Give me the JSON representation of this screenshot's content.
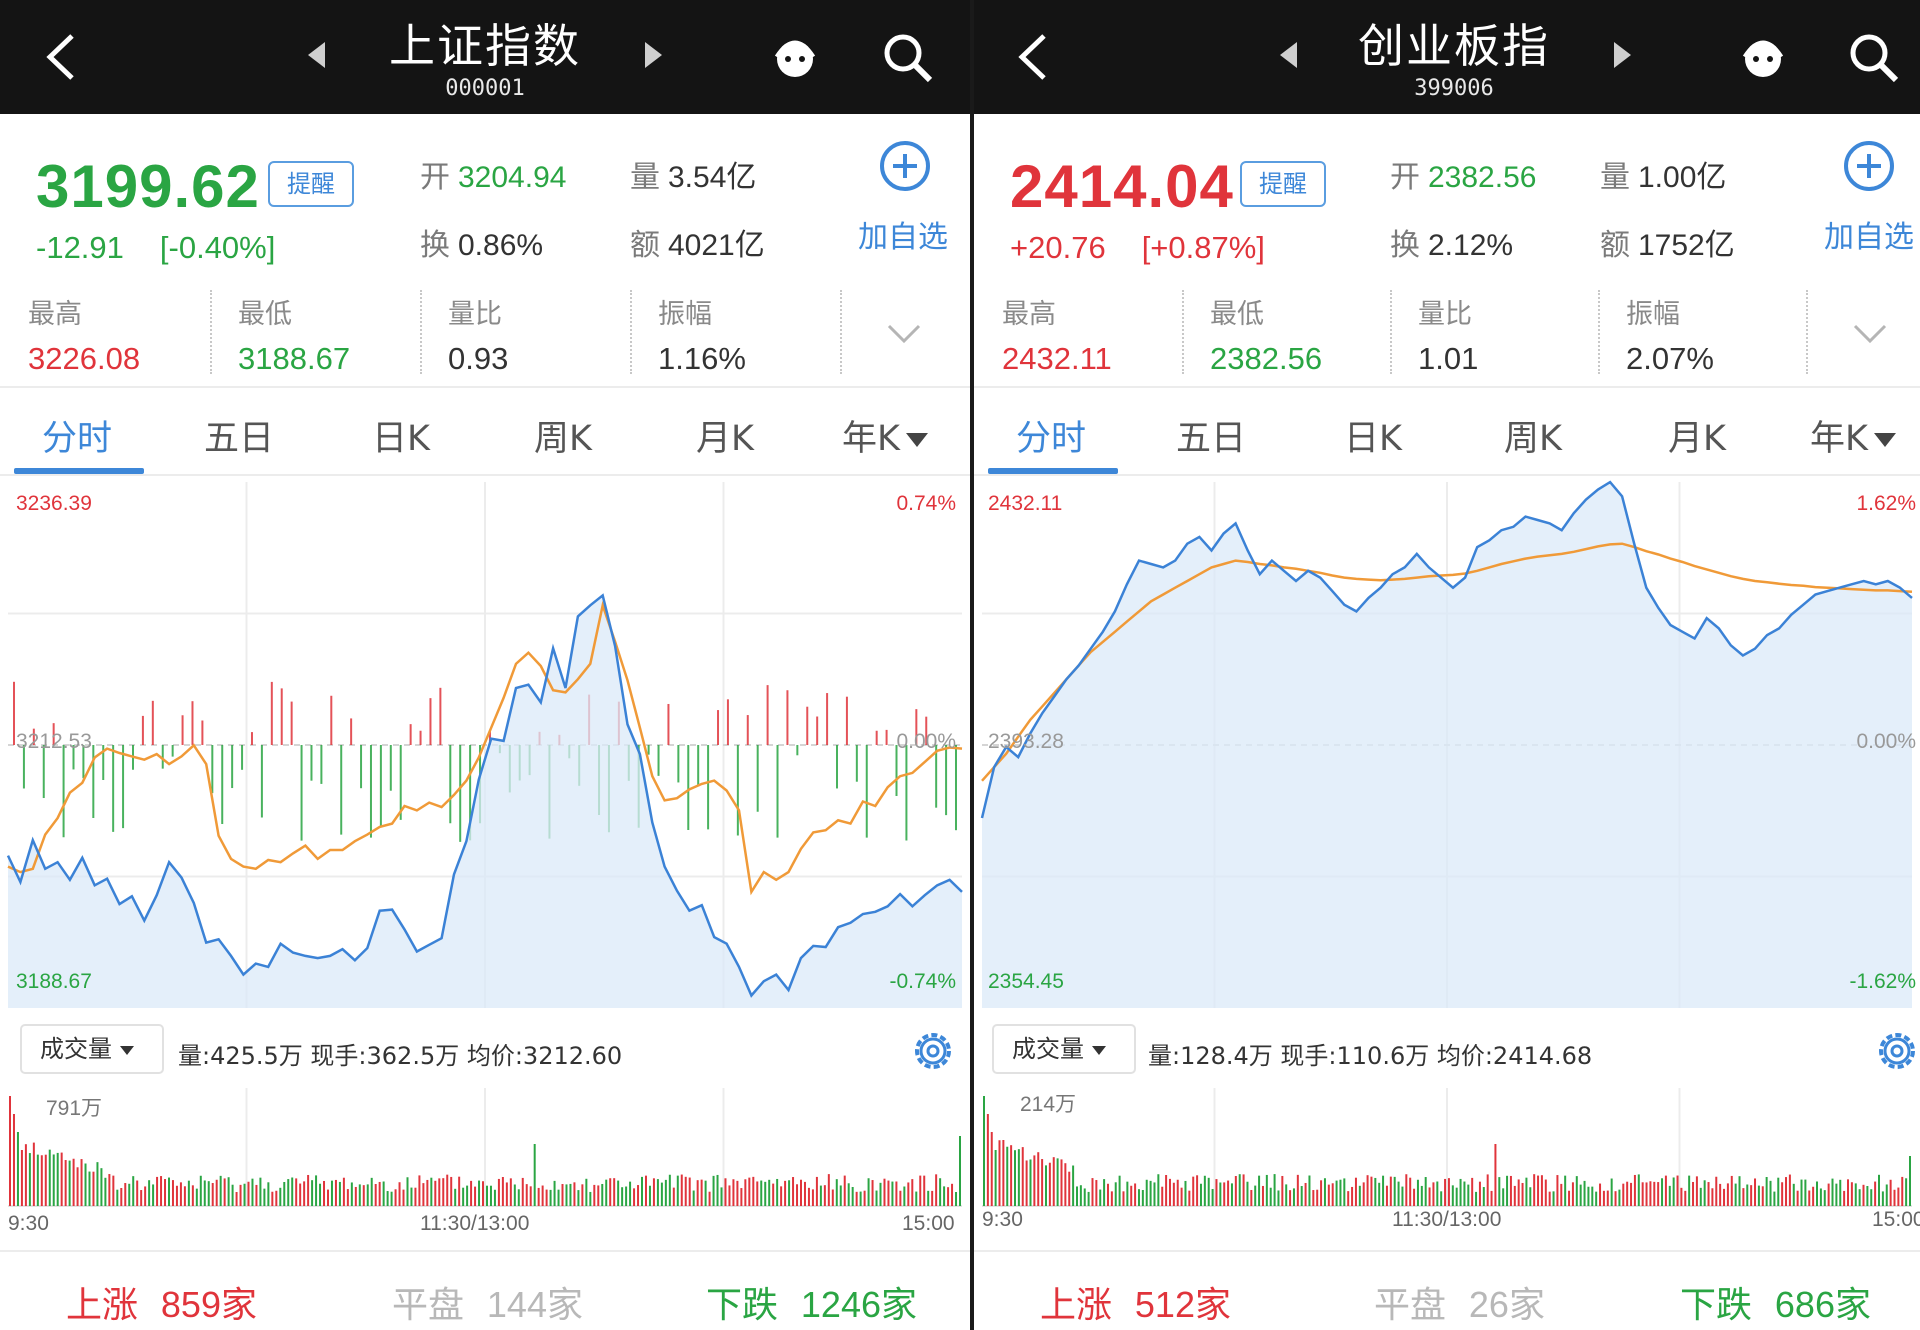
{
  "colors": {
    "up": "#e0343b",
    "down": "#2aa543",
    "accent": "#3d87d8",
    "line_price": "#3b82d6",
    "line_avg": "#f09a38"
  },
  "panels": [
    {
      "nav": {
        "title": "上证指数",
        "code": "000001"
      },
      "quote": {
        "price": "3199.62",
        "price_dir": "down",
        "remind_label": "提醒",
        "change": "-12.91",
        "change_pct": "[-0.40%]",
        "open_label": "开",
        "open": "3204.94",
        "vol_label": "量",
        "vol": "3.54亿",
        "turnover_label": "换",
        "turnover": "0.86%",
        "amount_label": "额",
        "amount": "4021亿",
        "add_label": "加自选",
        "stats": [
          {
            "label": "最高",
            "value": "3226.08",
            "dir": "up"
          },
          {
            "label": "最低",
            "value": "3188.67",
            "dir": "down"
          },
          {
            "label": "量比",
            "value": "0.93",
            "dir": "flat"
          },
          {
            "label": "振幅",
            "value": "1.16%",
            "dir": "flat"
          }
        ]
      },
      "tabs": [
        "分时",
        "五日",
        "日K",
        "周K",
        "月K",
        "年K"
      ],
      "chart_labels": {
        "top_left": "3236.39",
        "top_right": "0.74%",
        "mid_left": "3212.53",
        "mid_right": "0.00%",
        "bottom_left": "3188.67",
        "bottom_right": "-0.74%"
      },
      "vol_select": "成交量",
      "vol_info": "量:425.5万  现手:362.5万  均价:3212.60",
      "vol_max": "791万",
      "time_axis": [
        "9:30",
        "11:30/13:00",
        "15:00"
      ],
      "breadth": {
        "up_label": "上涨",
        "up": "859家",
        "flat_label": "平盘",
        "flat": "144家",
        "down_label": "下跌",
        "down": "1246家"
      },
      "chart_data": {
        "type": "line",
        "prev_close": 3212.53,
        "ylim": [
          3188.67,
          3236.39
        ],
        "series": [
          {
            "name": "price",
            "values": [
              3202.5,
              3200.1,
              3203.9,
              3201.3,
              3201.9,
              3200.3,
              3202.3,
              3199.8,
              3200.4,
              3198.1,
              3198.8,
              3196.6,
              3198.9,
              3201.9,
              3200.5,
              3198.2,
              3194.6,
              3194.9,
              3193.4,
              3191.7,
              3192.7,
              3192.4,
              3194.5,
              3193.7,
              3193.4,
              3193.2,
              3193.4,
              3194.0,
              3193.0,
              3194.1,
              3197.5,
              3197.6,
              3195.8,
              3193.8,
              3194.4,
              3195.0,
              3200.8,
              3203.8,
              3209.4,
              3213.1,
              3212.9,
              3217.7,
              3218.0,
              3216.4,
              3221.3,
              3217.7,
              3224.2,
              3225.2,
              3226.1,
              3221.5,
              3214.4,
              3211.7,
              3205.5,
              3201.5,
              3199.3,
              3197.5,
              3198.0,
              3195.1,
              3194.5,
              3192.4,
              3189.8,
              3191.1,
              3191.7,
              3190.3,
              3193.2,
              3194.3,
              3194.2,
              3196.0,
              3196.4,
              3197.2,
              3197.4,
              3197.9,
              3199.0,
              3197.9,
              3198.9,
              3199.8,
              3200.3,
              3199.2
            ]
          },
          {
            "name": "avg",
            "values": [
              3201.5,
              3201.0,
              3201.3,
              3204.4,
              3205.9,
              3208.2,
              3209.1,
              3211.4,
              3212.2,
              3211.8,
              3211.5,
              3211.2,
              3211.7,
              3210.8,
              3211.5,
              3212.5,
              3210.8,
              3204.3,
              3202.2,
              3201.5,
              3201.3,
              3202.1,
              3201.9,
              3202.7,
              3203.4,
              3202.2,
              3203.0,
              3203.0,
              3203.8,
              3204.4,
              3205.1,
              3205.4,
              3207.0,
              3206.6,
              3207.3,
              3206.9,
              3208.0,
              3209.3,
              3211.4,
              3214.1,
              3216.8,
              3219.9,
              3220.9,
              3219.7,
              3217.5,
              3217.3,
              3218.5,
              3219.9,
              3225.2,
              3221.9,
              3218.4,
              3214.1,
              3209.7,
              3207.5,
              3207.7,
              3208.5,
              3209.0,
              3209.3,
              3208.4,
              3206.6,
              3199.2,
              3201.0,
              3200.3,
              3201.0,
              3203.1,
              3204.6,
              3204.8,
              3205.7,
              3205.4,
              3207.4,
              3207.0,
              3208.7,
              3209.7,
              3210.0,
              3211.0,
              3212.0,
              3212.3,
              3212.2
            ]
          }
        ]
      }
    },
    {
      "nav": {
        "title": "创业板指",
        "code": "399006"
      },
      "quote": {
        "price": "2414.04",
        "price_dir": "up",
        "remind_label": "提醒",
        "change": "+20.76",
        "change_pct": "[+0.87%]",
        "open_label": "开",
        "open": "2382.56",
        "vol_label": "量",
        "vol": "1.00亿",
        "turnover_label": "换",
        "turnover": "2.12%",
        "amount_label": "额",
        "amount": "1752亿",
        "add_label": "加自选",
        "stats": [
          {
            "label": "最高",
            "value": "2432.11",
            "dir": "up"
          },
          {
            "label": "最低",
            "value": "2382.56",
            "dir": "down"
          },
          {
            "label": "量比",
            "value": "1.01",
            "dir": "flat"
          },
          {
            "label": "振幅",
            "value": "2.07%",
            "dir": "flat"
          }
        ]
      },
      "tabs": [
        "分时",
        "五日",
        "日K",
        "周K",
        "月K",
        "年K"
      ],
      "chart_labels": {
        "top_left": "2432.11",
        "top_right": "1.62%",
        "mid_left": "2393.28",
        "mid_right": "0.00%",
        "bottom_left": "2354.45",
        "bottom_right": "-1.62%"
      },
      "vol_select": "成交量",
      "vol_info": "量:128.4万  现手:110.6万  均价:2414.68",
      "vol_max": "214万",
      "time_axis": [
        "9:30",
        "11:30/13:00",
        "15:00"
      ],
      "breadth": {
        "up_label": "上涨",
        "up": "512家",
        "flat_label": "平盘",
        "flat": "26家",
        "down_label": "下跌",
        "down": "686家"
      },
      "chart_data": {
        "type": "line",
        "prev_close": 2393.28,
        "ylim": [
          2354.45,
          2432.11
        ],
        "series": [
          {
            "name": "price",
            "values": [
              2382.5,
              2390.0,
              2393.0,
              2391.5,
              2395.0,
              2398.0,
              2400.5,
              2403.0,
              2405.0,
              2407.5,
              2410.0,
              2413.0,
              2417.0,
              2420.5,
              2420.0,
              2419.5,
              2420.5,
              2423.0,
              2424.0,
              2422.0,
              2424.5,
              2426.0,
              2422.0,
              2418.5,
              2420.5,
              2419.0,
              2417.5,
              2419.0,
              2418.0,
              2416.0,
              2414.0,
              2413.0,
              2415.0,
              2416.5,
              2418.5,
              2419.5,
              2421.5,
              2419.5,
              2418.0,
              2416.5,
              2418.0,
              2422.5,
              2423.5,
              2425.0,
              2425.5,
              2427.0,
              2426.5,
              2426.0,
              2425.0,
              2427.5,
              2429.5,
              2431.0,
              2432.1,
              2430.0,
              2423.0,
              2416.5,
              2413.5,
              2411.0,
              2410.0,
              2409.0,
              2412.0,
              2410.5,
              2408.0,
              2406.5,
              2407.5,
              2409.5,
              2410.5,
              2412.5,
              2414.0,
              2415.5,
              2416.0,
              2416.5,
              2417.0,
              2417.5,
              2417.0,
              2417.5,
              2416.5,
              2415.0
            ]
          },
          {
            "name": "avg",
            "values": [
              2388.0,
              2390.0,
              2392.0,
              2394.5,
              2397.0,
              2399.0,
              2401.0,
              2403.0,
              2405.0,
              2407.0,
              2408.5,
              2410.0,
              2411.5,
              2413.0,
              2414.5,
              2415.5,
              2416.5,
              2417.5,
              2418.5,
              2419.5,
              2420.0,
              2420.5,
              2420.3,
              2420.0,
              2419.8,
              2419.5,
              2419.3,
              2419.0,
              2418.7,
              2418.3,
              2418.0,
              2417.8,
              2417.7,
              2417.6,
              2417.7,
              2417.8,
              2418.0,
              2418.2,
              2418.3,
              2418.4,
              2418.6,
              2419.0,
              2419.5,
              2420.0,
              2420.4,
              2420.8,
              2421.1,
              2421.3,
              2421.5,
              2421.8,
              2422.2,
              2422.6,
              2422.9,
              2423.0,
              2422.5,
              2421.9,
              2421.4,
              2420.8,
              2420.3,
              2419.7,
              2419.2,
              2418.7,
              2418.2,
              2417.8,
              2417.5,
              2417.3,
              2417.1,
              2416.9,
              2416.8,
              2416.6,
              2416.5,
              2416.4,
              2416.3,
              2416.2,
              2416.1,
              2416.1,
              2416.0,
              2415.9
            ]
          }
        ]
      }
    }
  ]
}
